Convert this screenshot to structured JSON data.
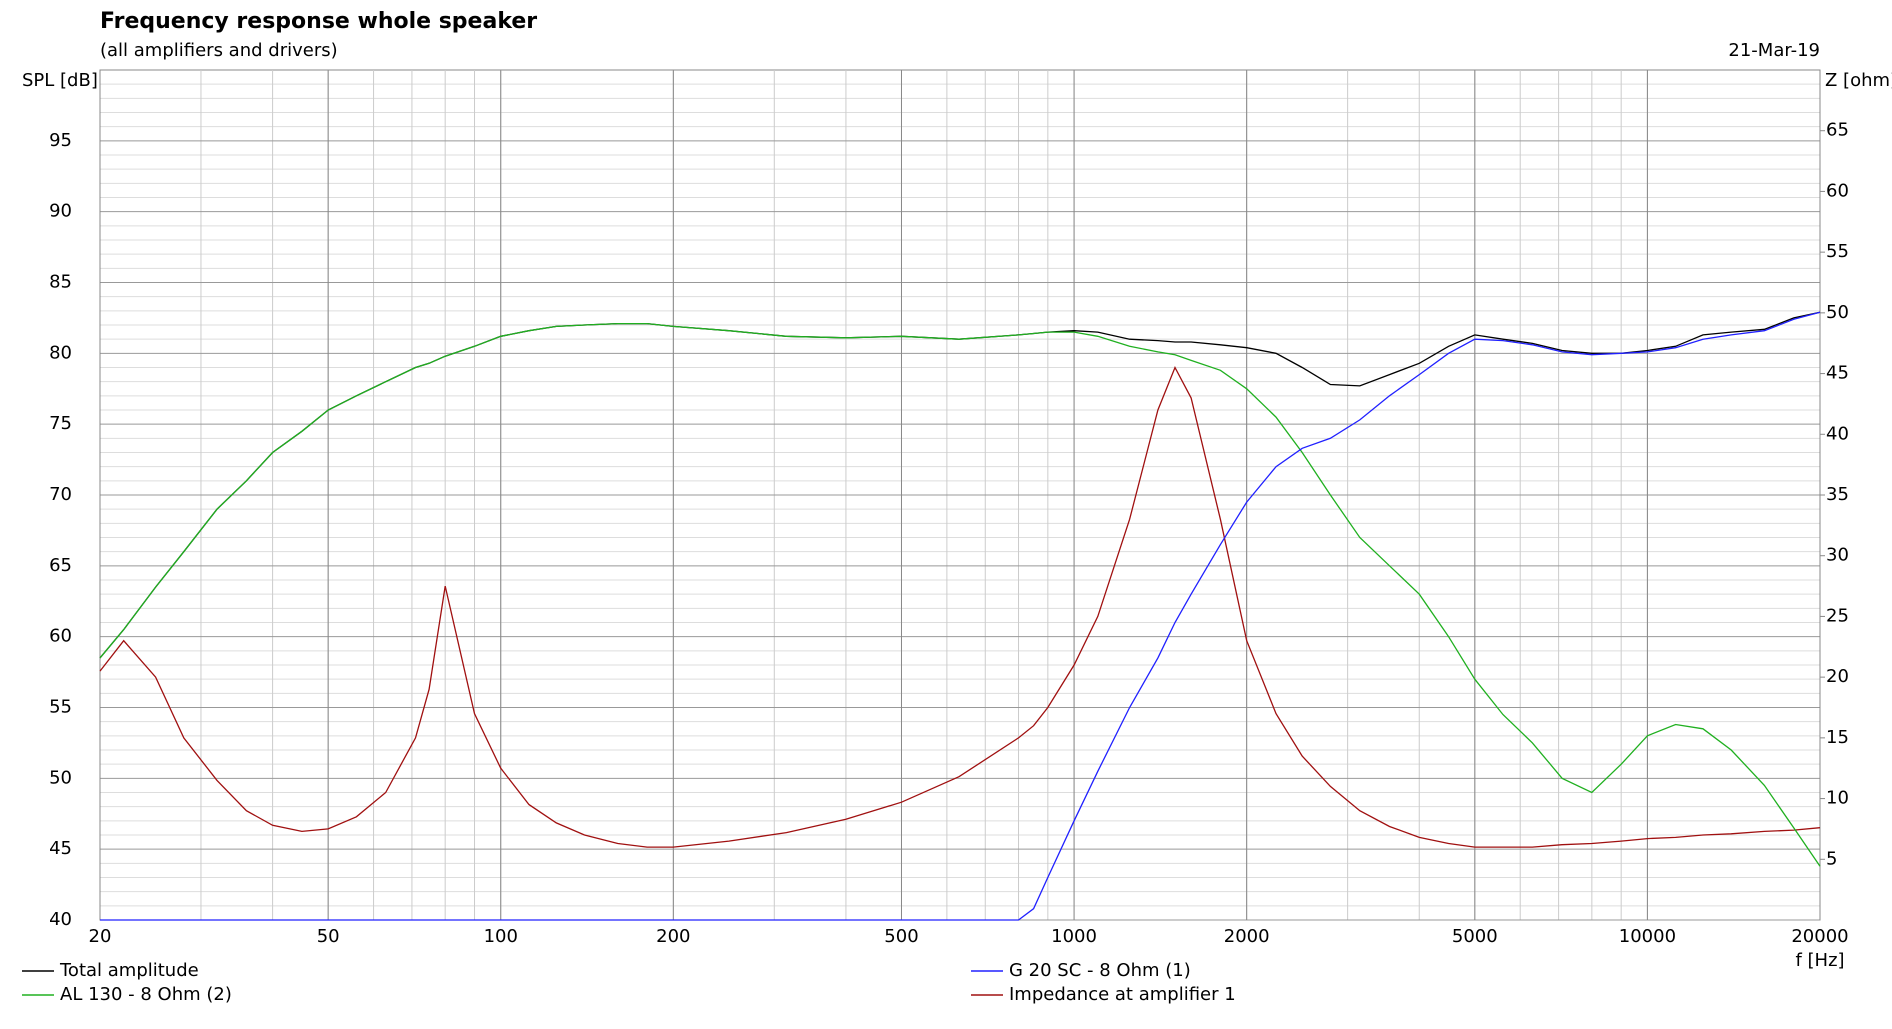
{
  "chart_data": {
    "type": "line",
    "title": "Frequency response whole speaker",
    "subtitle": "(all amplifiers and drivers)",
    "date": "21-Mar-19",
    "y_label": "SPL [dB]",
    "y2_label": "Z [ohm]",
    "x_label": "f [Hz]",
    "log_x": true,
    "grid": true,
    "minor_grid": true,
    "xlim": [
      20,
      20000
    ],
    "xticks": [
      20,
      50,
      100,
      200,
      500,
      1000,
      2000,
      5000,
      10000,
      20000
    ],
    "ylim": [
      40,
      100
    ],
    "yticks": [
      40,
      45,
      50,
      55,
      60,
      65,
      70,
      75,
      80,
      85,
      90,
      95
    ],
    "y2lim": [
      0,
      70
    ],
    "y2ticks": [
      5,
      10,
      15,
      20,
      25,
      30,
      35,
      40,
      45,
      50,
      55,
      60,
      65
    ],
    "x": [
      20,
      22,
      25,
      28,
      32,
      36,
      40,
      45,
      50,
      56,
      63,
      71,
      75,
      80,
      90,
      100,
      112,
      125,
      140,
      160,
      180,
      200,
      250,
      315,
      400,
      500,
      630,
      800,
      850,
      900,
      1000,
      1100,
      1250,
      1400,
      1500,
      1600,
      1800,
      2000,
      2250,
      2500,
      2800,
      3150,
      3550,
      4000,
      4500,
      5000,
      5600,
      6300,
      7100,
      8000,
      9000,
      10000,
      11200,
      12500,
      14000,
      16000,
      18000,
      20000
    ],
    "series": [
      {
        "name": "Total amplitude",
        "color": "#000000",
        "values": [
          58.5,
          60.5,
          63.5,
          66,
          69,
          71,
          73,
          74.5,
          76,
          77,
          78,
          79,
          79.3,
          79.8,
          80.5,
          81.2,
          81.6,
          81.9,
          82,
          82.1,
          82.1,
          81.9,
          81.6,
          81.2,
          81.1,
          81.2,
          81,
          81.3,
          81.4,
          81.5,
          81.6,
          81.5,
          81,
          80.9,
          80.8,
          80.8,
          80.6,
          80.4,
          80,
          79,
          77.8,
          77.7,
          78.5,
          79.3,
          80.5,
          81.3,
          81,
          80.7,
          80.2,
          80,
          80,
          80.2,
          80.5,
          81.3,
          81.5,
          81.7,
          82.5,
          82.9
        ]
      },
      {
        "name": "G 20 SC - 8 Ohm (1)",
        "color": "#2020ff",
        "values": [
          40,
          40,
          40,
          40,
          40,
          40,
          40,
          40,
          40,
          40,
          40,
          40,
          40,
          40,
          40,
          40,
          40,
          40,
          40,
          40,
          40,
          40,
          40,
          40,
          40,
          40,
          40,
          40,
          40.8,
          43,
          47,
          50.5,
          55,
          58.5,
          61,
          63,
          66.5,
          69.5,
          72,
          73.3,
          74,
          75.3,
          77,
          78.5,
          80,
          81,
          80.9,
          80.6,
          80.1,
          79.9,
          80,
          80.1,
          80.4,
          81,
          81.3,
          81.6,
          82.4,
          82.9
        ]
      },
      {
        "name": "AL 130 - 8 Ohm (2)",
        "color": "#20b020",
        "values": [
          58.5,
          60.5,
          63.5,
          66,
          69,
          71,
          73,
          74.5,
          76,
          77,
          78,
          79,
          79.3,
          79.8,
          80.5,
          81.2,
          81.6,
          81.9,
          82,
          82.1,
          82.1,
          81.9,
          81.6,
          81.2,
          81.1,
          81.2,
          81,
          81.3,
          81.4,
          81.5,
          81.5,
          81.2,
          80.5,
          80.1,
          79.9,
          79.5,
          78.8,
          77.5,
          75.5,
          73,
          70,
          67,
          65,
          63,
          60,
          57,
          54.5,
          52.5,
          50,
          49,
          51,
          53,
          53.8,
          53.5,
          52,
          49.5,
          46.5,
          43.8
        ]
      },
      {
        "name": "Impedance at amplifier 1",
        "color": "#a01010",
        "axis": "y2",
        "values": [
          20.5,
          23,
          20,
          15,
          11.5,
          9,
          7.8,
          7.3,
          7.5,
          8.5,
          10.5,
          15,
          19,
          27.5,
          17,
          12.5,
          9.5,
          8,
          7,
          6.3,
          6,
          6,
          6.5,
          7.2,
          8.3,
          9.7,
          11.8,
          15,
          16,
          17.5,
          21,
          25,
          33,
          42,
          45.5,
          43,
          33,
          23,
          17,
          13.5,
          11,
          9,
          7.7,
          6.8,
          6.3,
          6,
          6,
          6,
          6.2,
          6.3,
          6.5,
          6.7,
          6.8,
          7,
          7.1,
          7.3,
          7.4,
          7.6
        ]
      }
    ]
  }
}
